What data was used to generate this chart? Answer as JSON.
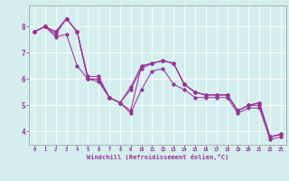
{
  "xlabel": "Windchill (Refroidissement éolien,°C)",
  "bg_color": "#d4eeee",
  "line_color": "#993399",
  "grid_color": "#ffffff",
  "xlim": [
    -0.5,
    23.5
  ],
  "ylim": [
    3.5,
    8.8
  ],
  "yticks": [
    4,
    5,
    6,
    7,
    8
  ],
  "xticks": [
    0,
    1,
    2,
    3,
    4,
    5,
    6,
    7,
    8,
    9,
    10,
    11,
    12,
    13,
    14,
    15,
    16,
    17,
    18,
    19,
    20,
    21,
    22,
    23
  ],
  "series": [
    [
      7.8,
      8.0,
      7.8,
      8.3,
      7.8,
      6.0,
      6.0,
      5.3,
      5.1,
      4.8,
      6.5,
      6.6,
      6.7,
      6.6,
      5.8,
      5.5,
      5.4,
      5.4,
      5.4,
      4.8,
      5.0,
      5.0,
      3.8,
      3.9
    ],
    [
      7.8,
      8.0,
      7.8,
      8.3,
      7.8,
      6.1,
      6.1,
      5.3,
      5.1,
      5.7,
      6.5,
      6.6,
      6.7,
      6.6,
      5.8,
      5.5,
      5.4,
      5.4,
      5.4,
      4.8,
      5.0,
      5.1,
      3.8,
      3.9
    ],
    [
      7.8,
      8.0,
      7.6,
      7.7,
      6.5,
      6.0,
      6.0,
      5.3,
      5.1,
      5.6,
      6.4,
      6.6,
      6.7,
      6.6,
      5.8,
      5.5,
      5.4,
      5.4,
      5.4,
      4.8,
      5.0,
      5.1,
      3.8,
      3.9
    ],
    [
      7.8,
      8.0,
      7.7,
      8.3,
      7.8,
      6.0,
      5.9,
      5.3,
      5.1,
      4.7,
      5.6,
      6.3,
      6.4,
      5.8,
      5.6,
      5.3,
      5.3,
      5.3,
      5.3,
      4.7,
      4.9,
      4.9,
      3.7,
      3.8
    ]
  ]
}
